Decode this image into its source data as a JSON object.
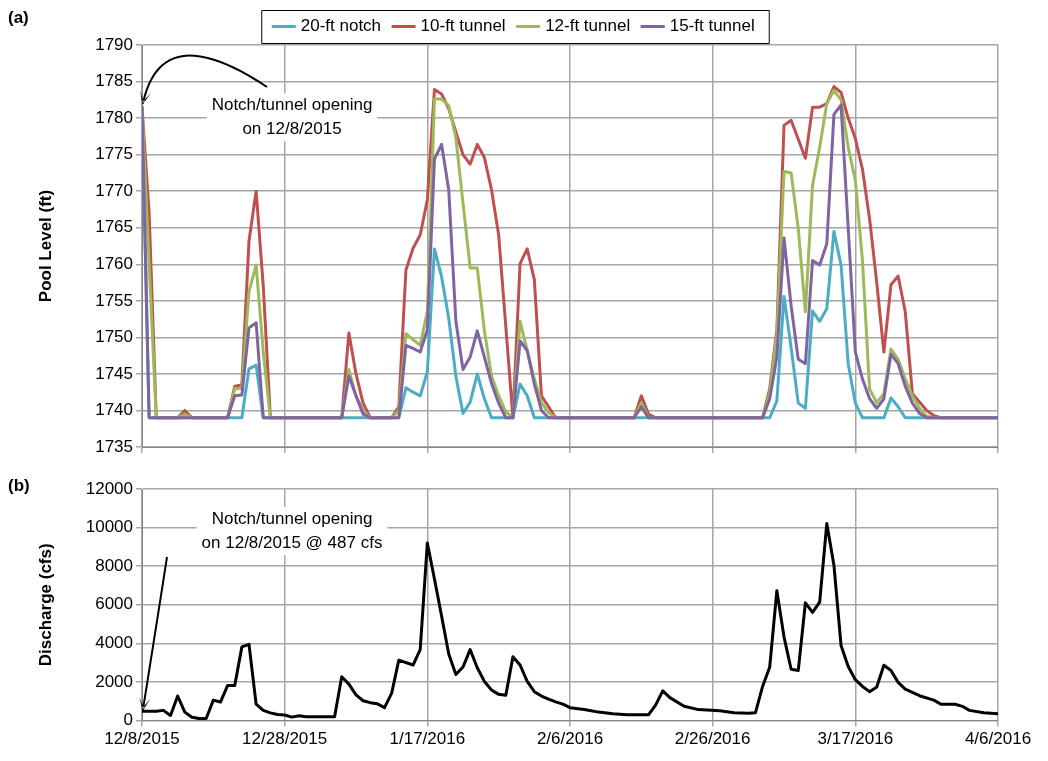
{
  "chart_data": [
    {
      "type": "line",
      "title": "(a)",
      "ylabel": "Pool Level (ft)",
      "xlim": [
        "2015-12-08",
        "2016-04-06"
      ],
      "xticks": [
        {
          "value": "2015-12-08",
          "label": null
        },
        {
          "value": "2015-12-28",
          "label": null
        },
        {
          "value": "2016-01-17",
          "label": null
        },
        {
          "value": "2016-02-06",
          "label": null
        },
        {
          "value": "2016-02-26",
          "label": null
        },
        {
          "value": "2016-03-17",
          "label": null
        },
        {
          "value": "2016-04-06",
          "label": null
        }
      ],
      "ylim": [
        1735,
        1790
      ],
      "yticks": [
        1735,
        1740,
        1745,
        1750,
        1755,
        1760,
        1765,
        1770,
        1775,
        1780,
        1785,
        1790
      ],
      "grid": true,
      "legend": "top",
      "marker": "none",
      "tick_labels": "y",
      "annotations": [
        "Notch/tunnel opening on 12/8/2015"
      ],
      "series": [
        {
          "name": "20-ft notch",
          "color": "#4bacc6",
          "x": [
            "2015-12-08",
            "2015-12-09",
            "2015-12-22",
            "2015-12-23",
            "2015-12-24",
            "2015-12-25",
            "2016-01-13",
            "2016-01-14",
            "2016-01-15",
            "2016-01-16",
            "2016-01-17",
            "2016-01-18",
            "2016-01-19",
            "2016-01-20",
            "2016-01-21",
            "2016-01-22",
            "2016-01-23",
            "2016-01-24",
            "2016-01-25",
            "2016-01-26",
            "2016-01-29",
            "2016-01-30",
            "2016-01-31",
            "2016-02-01",
            "2016-03-05",
            "2016-03-06",
            "2016-03-07",
            "2016-03-08",
            "2016-03-09",
            "2016-03-10",
            "2016-03-11",
            "2016-03-12",
            "2016-03-13",
            "2016-03-14",
            "2016-03-15",
            "2016-03-16",
            "2016-03-17",
            "2016-03-18",
            "2016-03-19",
            "2016-03-20",
            "2016-03-21",
            "2016-03-22",
            "2016-03-23",
            "2016-03-24",
            "2016-04-06"
          ],
          "values": [
            1781.5,
            1739,
            1739,
            1745.7,
            1746.2,
            1739,
            1739,
            1743.1,
            1742.5,
            1742,
            1745.3,
            1762.1,
            1758.3,
            1752.6,
            1744.7,
            1739.6,
            1741.1,
            1745,
            1741.6,
            1739,
            1739,
            1743.6,
            1742,
            1739,
            1739,
            1741.3,
            1755.6,
            1748.6,
            1741,
            1740.3,
            1753.6,
            1752.2,
            1753.9,
            1764.5,
            1759.9,
            1746.4,
            1741,
            1739,
            1739,
            1739,
            1739,
            1741.7,
            1740.5,
            1739,
            1739
          ]
        },
        {
          "name": "10-ft tunnel",
          "color": "#c0504d",
          "x": [
            "2015-12-08",
            "2015-12-09",
            "2015-12-10",
            "2015-12-13",
            "2015-12-14",
            "2015-12-15",
            "2015-12-20",
            "2015-12-21",
            "2015-12-22",
            "2015-12-23",
            "2015-12-24",
            "2015-12-25",
            "2015-12-26",
            "2016-01-05",
            "2016-01-06",
            "2016-01-07",
            "2016-01-08",
            "2016-01-09",
            "2016-01-12",
            "2016-01-13",
            "2016-01-14",
            "2016-01-15",
            "2016-01-16",
            "2016-01-17",
            "2016-01-18",
            "2016-01-19",
            "2016-01-20",
            "2016-01-21",
            "2016-01-22",
            "2016-01-23",
            "2016-01-24",
            "2016-01-25",
            "2016-01-26",
            "2016-01-27",
            "2016-01-29",
            "2016-01-30",
            "2016-01-31",
            "2016-02-01",
            "2016-02-02",
            "2016-02-03",
            "2016-02-04",
            "2016-02-15",
            "2016-02-16",
            "2016-02-17",
            "2016-02-18",
            "2016-03-04",
            "2016-03-05",
            "2016-03-06",
            "2016-03-07",
            "2016-03-08",
            "2016-03-10",
            "2016-03-11",
            "2016-03-12",
            "2016-03-13",
            "2016-03-14",
            "2016-03-15",
            "2016-03-16",
            "2016-03-17",
            "2016-03-18",
            "2016-03-19",
            "2016-03-20",
            "2016-03-21",
            "2016-03-22",
            "2016-03-23",
            "2016-03-24",
            "2016-03-25",
            "2016-03-27",
            "2016-03-28",
            "2016-03-29",
            "2016-04-06"
          ],
          "values": [
            1781.5,
            1767,
            1739,
            1739,
            1740,
            1739,
            1739,
            1743.3,
            1743.5,
            1763.2,
            1770,
            1757,
            1739,
            1739,
            1750.6,
            1745,
            1741,
            1739,
            1739,
            1740.5,
            1759.2,
            1762.2,
            1764,
            1768.8,
            1783.9,
            1783.3,
            1781.3,
            1778.1,
            1775,
            1773.7,
            1776.4,
            1774.6,
            1770.2,
            1764,
            1739,
            1760.1,
            1762.1,
            1757.9,
            1742,
            1740.5,
            1739,
            1739,
            1742,
            1739.5,
            1739,
            1739,
            1743,
            1751,
            1779,
            1779.7,
            1774.5,
            1781.5,
            1781.5,
            1782,
            1784.3,
            1783.5,
            1780,
            1777.2,
            1773,
            1766.2,
            1757.5,
            1748,
            1757.2,
            1758.4,
            1753.5,
            1742.3,
            1740,
            1739.3,
            1739,
            1739
          ]
        },
        {
          "name": "12-ft tunnel",
          "color": "#9bbb59",
          "x": [
            "2015-12-08",
            "2015-12-09",
            "2015-12-10",
            "2015-12-13",
            "2015-12-14",
            "2015-12-15",
            "2015-12-20",
            "2015-12-21",
            "2015-12-22",
            "2015-12-23",
            "2015-12-24",
            "2015-12-25",
            "2015-12-26",
            "2016-01-05",
            "2016-01-06",
            "2016-01-07",
            "2016-01-08",
            "2016-01-09",
            "2016-01-12",
            "2016-01-13",
            "2016-01-14",
            "2016-01-15",
            "2016-01-16",
            "2016-01-17",
            "2016-01-18",
            "2016-01-19",
            "2016-01-20",
            "2016-01-21",
            "2016-01-22",
            "2016-01-23",
            "2016-01-24",
            "2016-01-25",
            "2016-01-26",
            "2016-01-27",
            "2016-01-28",
            "2016-01-29",
            "2016-01-30",
            "2016-01-31",
            "2016-02-01",
            "2016-02-02",
            "2016-02-03",
            "2016-02-04",
            "2016-02-15",
            "2016-02-16",
            "2016-02-17",
            "2016-03-04",
            "2016-03-05",
            "2016-03-06",
            "2016-03-07",
            "2016-03-08",
            "2016-03-09",
            "2016-03-10",
            "2016-03-11",
            "2016-03-12",
            "2016-03-13",
            "2016-03-14",
            "2016-03-15",
            "2016-03-16",
            "2016-03-17",
            "2016-03-18",
            "2016-03-19",
            "2016-03-20",
            "2016-03-21",
            "2016-03-22",
            "2016-03-23",
            "2016-03-24",
            "2016-03-25",
            "2016-03-26",
            "2016-03-27",
            "2016-03-28",
            "2016-04-06"
          ],
          "values": [
            1781.5,
            1760,
            1739,
            1739,
            1739.5,
            1739,
            1739,
            1743,
            1743,
            1756.3,
            1759.9,
            1748,
            1739,
            1739,
            1745.6,
            1742,
            1740,
            1739,
            1739,
            1740,
            1750.5,
            1749.7,
            1748.9,
            1753.5,
            1782.6,
            1782.6,
            1781.7,
            1777.3,
            1768.4,
            1759.5,
            1759.5,
            1750.9,
            1744.7,
            1742,
            1739.8,
            1739,
            1752.2,
            1748.2,
            1744.3,
            1741.1,
            1739.7,
            1739,
            1739,
            1741,
            1739,
            1739,
            1742.4,
            1750.3,
            1772.7,
            1772.5,
            1764.9,
            1753.5,
            1770.8,
            1776,
            1782,
            1783.8,
            1782.5,
            1776,
            1771.5,
            1760.5,
            1742.9,
            1741.1,
            1742.3,
            1748.4,
            1747,
            1744.3,
            1742,
            1740.3,
            1739.2,
            1739,
            1739
          ]
        },
        {
          "name": "15-ft tunnel",
          "color": "#8064a2",
          "x": [
            "2015-12-08",
            "2015-12-09",
            "2015-12-20",
            "2015-12-21",
            "2015-12-22",
            "2015-12-23",
            "2015-12-24",
            "2015-12-25",
            "2016-01-05",
            "2016-01-06",
            "2016-01-07",
            "2016-01-08",
            "2016-01-09",
            "2016-01-13",
            "2016-01-14",
            "2016-01-15",
            "2016-01-16",
            "2016-01-17",
            "2016-01-18",
            "2016-01-19",
            "2016-01-20",
            "2016-01-21",
            "2016-01-22",
            "2016-01-23",
            "2016-01-24",
            "2016-01-25",
            "2016-01-26",
            "2016-01-27",
            "2016-01-28",
            "2016-01-29",
            "2016-01-30",
            "2016-01-31",
            "2016-02-01",
            "2016-02-02",
            "2016-02-03",
            "2016-02-15",
            "2016-02-16",
            "2016-02-17",
            "2016-03-04",
            "2016-03-05",
            "2016-03-06",
            "2016-03-07",
            "2016-03-08",
            "2016-03-09",
            "2016-03-10",
            "2016-03-11",
            "2016-03-12",
            "2016-03-13",
            "2016-03-14",
            "2016-03-15",
            "2016-03-16",
            "2016-03-17",
            "2016-03-18",
            "2016-03-19",
            "2016-03-20",
            "2016-03-21",
            "2016-03-22",
            "2016-03-23",
            "2016-03-24",
            "2016-03-25",
            "2016-03-26",
            "2016-03-27",
            "2016-04-06"
          ],
          "values": [
            1781.5,
            1739,
            1739,
            1742,
            1742.1,
            1751.3,
            1752,
            1739,
            1739,
            1744.7,
            1742,
            1739.5,
            1739,
            1739,
            1748.9,
            1748.5,
            1748,
            1751,
            1774.4,
            1776.4,
            1770.2,
            1752.2,
            1745.6,
            1747.3,
            1750.9,
            1747.3,
            1743.7,
            1741,
            1739,
            1739,
            1749.5,
            1748.2,
            1743.6,
            1740,
            1739,
            1739,
            1740.5,
            1739,
            1739,
            1741.6,
            1747.3,
            1763.6,
            1754.3,
            1747,
            1746.4,
            1760.5,
            1759.9,
            1762.8,
            1780.5,
            1781.8,
            1765,
            1748,
            1744.3,
            1741.6,
            1740.3,
            1741.6,
            1747.7,
            1746.4,
            1743.3,
            1741,
            1739.6,
            1739,
            1739
          ]
        }
      ]
    },
    {
      "type": "line",
      "title": "(b)",
      "ylabel": "Discharge (cfs)",
      "xlim": [
        "2015-12-08",
        "2016-04-06"
      ],
      "xticks": [
        {
          "value": "2015-12-08",
          "label": "12/8/2015"
        },
        {
          "value": "2015-12-28",
          "label": "12/28/2015"
        },
        {
          "value": "2016-01-17",
          "label": "1/17/2016"
        },
        {
          "value": "2016-02-06",
          "label": "2/6/2016"
        },
        {
          "value": "2016-02-26",
          "label": "2/26/2016"
        },
        {
          "value": "2016-03-17",
          "label": "3/17/2016"
        },
        {
          "value": "2016-04-06",
          "label": "4/6/2016"
        }
      ],
      "ylim": [
        0,
        12000
      ],
      "yticks": [
        0,
        2000,
        4000,
        6000,
        8000,
        10000,
        12000
      ],
      "grid": true,
      "marker": "none",
      "annotations": [
        "Notch/tunnel opening on 12/8/2015 @ 487 cfs"
      ],
      "series": [
        {
          "color": "#000000",
          "x": [
            "2015-12-08",
            "2015-12-10",
            "2015-12-11",
            "2015-12-12",
            "2015-12-13",
            "2015-12-14",
            "2015-12-15",
            "2015-12-16",
            "2015-12-17",
            "2015-12-18",
            "2015-12-19",
            "2015-12-20",
            "2015-12-21",
            "2015-12-22",
            "2015-12-23",
            "2015-12-24",
            "2015-12-25",
            "2015-12-26",
            "2015-12-27",
            "2015-12-28",
            "2015-12-29",
            "2015-12-30",
            "2015-12-31",
            "2016-01-04",
            "2016-01-05",
            "2016-01-06",
            "2016-01-07",
            "2016-01-08",
            "2016-01-09",
            "2016-01-10",
            "2016-01-11",
            "2016-01-12",
            "2016-01-13",
            "2016-01-15",
            "2016-01-16",
            "2016-01-17",
            "2016-01-18",
            "2016-01-19",
            "2016-01-20",
            "2016-01-21",
            "2016-01-22",
            "2016-01-23",
            "2016-01-24",
            "2016-01-25",
            "2016-01-26",
            "2016-01-27",
            "2016-01-28",
            "2016-01-29",
            "2016-01-30",
            "2016-01-31",
            "2016-02-01",
            "2016-02-02",
            "2016-02-03",
            "2016-02-04",
            "2016-02-05",
            "2016-02-06",
            "2016-02-08",
            "2016-02-10",
            "2016-02-12",
            "2016-02-14",
            "2016-02-17",
            "2016-02-18",
            "2016-02-19",
            "2016-02-20",
            "2016-02-22",
            "2016-02-24",
            "2016-02-27",
            "2016-02-29",
            "2016-03-02",
            "2016-03-03",
            "2016-03-04",
            "2016-03-05",
            "2016-03-06",
            "2016-03-07",
            "2016-03-08",
            "2016-03-09",
            "2016-03-10",
            "2016-03-11",
            "2016-03-12",
            "2016-03-13",
            "2016-03-14",
            "2016-03-15",
            "2016-03-16",
            "2016-03-17",
            "2016-03-18",
            "2016-03-19",
            "2016-03-20",
            "2016-03-21",
            "2016-03-22",
            "2016-03-23",
            "2016-03-24",
            "2016-03-26",
            "2016-03-28",
            "2016-03-29",
            "2016-03-31",
            "2016-04-01",
            "2016-04-02",
            "2016-04-04",
            "2016-04-06"
          ],
          "values": [
            487,
            487,
            530,
            265,
            1275,
            440,
            175,
            106,
            106,
            1060,
            960,
            1820,
            1820,
            3820,
            3950,
            850,
            530,
            400,
            320,
            290,
            180,
            250,
            200,
            200,
            2270,
            1890,
            1330,
            1030,
            930,
            870,
            670,
            1420,
            3130,
            2880,
            3680,
            9200,
            7340,
            5420,
            3450,
            2390,
            2780,
            3680,
            2740,
            2030,
            1590,
            1360,
            1310,
            3310,
            2880,
            2030,
            1500,
            1270,
            1110,
            970,
            850,
            670,
            580,
            440,
            350,
            300,
            300,
            800,
            1540,
            1190,
            740,
            570,
            510,
            410,
            380,
            410,
            1770,
            2780,
            6730,
            4340,
            2660,
            2600,
            6100,
            5610,
            6140,
            10210,
            8050,
            3890,
            2800,
            2120,
            1770,
            1500,
            1740,
            2870,
            2600,
            1980,
            1630,
            1290,
            1060,
            850,
            850,
            740,
            530,
            410,
            350
          ]
        }
      ]
    }
  ]
}
